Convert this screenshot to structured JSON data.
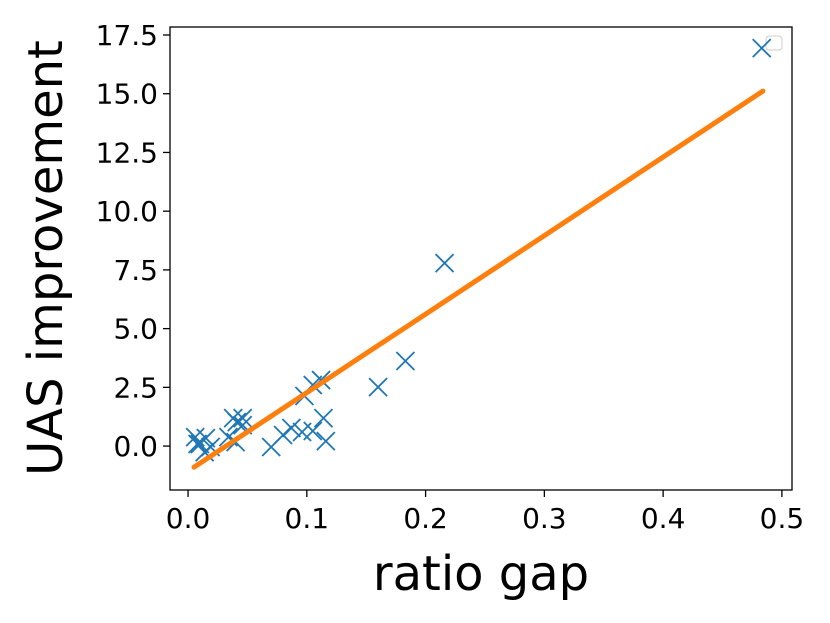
{
  "chart_data": {
    "type": "scatter",
    "xlabel": "ratio gap",
    "ylabel": "UAS improvement",
    "xlim": [
      -0.0152,
      0.5085
    ],
    "ylim": [
      -1.87,
      17.84
    ],
    "xticks": [
      {
        "value": 0,
        "label": "0.0"
      },
      0.1,
      0.2,
      0.3,
      0.4,
      0.5
    ],
    "yticks": [
      {
        "value": 0,
        "label": "0.0"
      },
      2.5,
      {
        "value": 5,
        "label": "5.0"
      },
      7.5,
      {
        "value": 10,
        "label": "10.0"
      },
      12.5,
      {
        "value": 15,
        "label": "15.0"
      },
      17.5
    ],
    "series": [
      {
        "type": "scatter",
        "color": "#1f77b4",
        "x": [
          0.483,
          0.216,
          0.183,
          0.16,
          0.112,
          0.105,
          0.098,
          0.114,
          0.116,
          0.105,
          0.096,
          0.087,
          0.08,
          0.07,
          0.046,
          0.041,
          0.038,
          0.04,
          0.034,
          0.046,
          0.015,
          0.01,
          0.006,
          0.008,
          0.014,
          0.019
        ],
        "values": [
          16.94,
          7.79,
          3.62,
          2.51,
          2.81,
          2.6,
          2.13,
          1.19,
          0.21,
          0.64,
          0.6,
          0.77,
          0.47,
          -0.04,
          1.19,
          1.02,
          1.19,
          0.17,
          0.38,
          0.89,
          0.34,
          0.09,
          0.38,
          0.09,
          -0.26,
          -0.04
        ]
      },
      {
        "type": "line",
        "color": "#ff7f0e",
        "x": [
          0.005,
          0.484
        ],
        "values": [
          -0.9,
          15.11
        ]
      }
    ]
  }
}
